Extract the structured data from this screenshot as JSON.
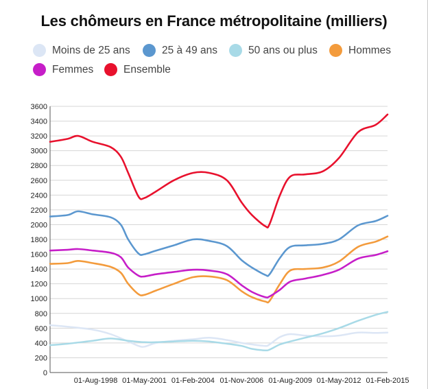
{
  "chart_data": {
    "type": "line",
    "title": "Les chômeurs en France métropolitaine (milliers)",
    "xlabel": "",
    "ylabel": "",
    "ylim": [
      0,
      3600
    ],
    "yticks": [
      0,
      200,
      400,
      600,
      800,
      1000,
      1200,
      1400,
      1600,
      1800,
      2000,
      2200,
      2400,
      2600,
      2800,
      3000,
      3200,
      3400,
      3600
    ],
    "xlim": [
      "1996-01",
      "2015-02"
    ],
    "xtick_labels": [
      "01-Aug-1998",
      "01-May-2001",
      "01-Feb-2004",
      "01-Nov-2006",
      "01-Aug-2009",
      "01-May-2012",
      "01-Feb-2015"
    ],
    "xtick_dates": [
      "1998-08",
      "2001-05",
      "2004-02",
      "2006-11",
      "2009-08",
      "2012-05",
      "2015-02"
    ],
    "grid": "horizontal",
    "legend_position": "top",
    "series": [
      {
        "name": "Moins de 25 ans",
        "color": "#dce6f5",
        "points": [
          [
            "1996-01",
            640
          ],
          [
            "1997-01",
            620
          ],
          [
            "1998-06",
            580
          ],
          [
            "1999-06",
            520
          ],
          [
            "2000-06",
            420
          ],
          [
            "2001-01",
            360
          ],
          [
            "2001-05",
            350
          ],
          [
            "2002-01",
            400
          ],
          [
            "2003-01",
            430
          ],
          [
            "2004-02",
            450
          ],
          [
            "2005-01",
            470
          ],
          [
            "2006-01",
            440
          ],
          [
            "2006-11",
            400
          ],
          [
            "2007-06",
            380
          ],
          [
            "2008-03",
            360
          ],
          [
            "2008-06",
            380
          ],
          [
            "2009-01",
            480
          ],
          [
            "2009-08",
            520
          ],
          [
            "2010-06",
            500
          ],
          [
            "2011-06",
            490
          ],
          [
            "2012-05",
            500
          ],
          [
            "2013-06",
            540
          ],
          [
            "2014-06",
            535
          ],
          [
            "2015-02",
            540
          ]
        ]
      },
      {
        "name": "25 à 49 ans",
        "color": "#5b97cf",
        "points": [
          [
            "1996-01",
            2110
          ],
          [
            "1997-01",
            2130
          ],
          [
            "1997-08",
            2180
          ],
          [
            "1998-06",
            2140
          ],
          [
            "1999-06",
            2100
          ],
          [
            "2000-01",
            2000
          ],
          [
            "2000-06",
            1800
          ],
          [
            "2001-01",
            1610
          ],
          [
            "2001-05",
            1600
          ],
          [
            "2002-01",
            1650
          ],
          [
            "2003-01",
            1720
          ],
          [
            "2004-02",
            1800
          ],
          [
            "2005-01",
            1780
          ],
          [
            "2006-01",
            1710
          ],
          [
            "2006-11",
            1520
          ],
          [
            "2007-06",
            1420
          ],
          [
            "2008-03",
            1320
          ],
          [
            "2008-06",
            1330
          ],
          [
            "2009-01",
            1550
          ],
          [
            "2009-08",
            1700
          ],
          [
            "2010-06",
            1720
          ],
          [
            "2011-06",
            1740
          ],
          [
            "2012-05",
            1800
          ],
          [
            "2013-06",
            1990
          ],
          [
            "2014-06",
            2050
          ],
          [
            "2015-02",
            2120
          ]
        ]
      },
      {
        "name": "50 ans ou plus",
        "color": "#a8dae7",
        "points": [
          [
            "1996-01",
            370
          ],
          [
            "1997-01",
            390
          ],
          [
            "1998-06",
            430
          ],
          [
            "1999-06",
            460
          ],
          [
            "2000-06",
            430
          ],
          [
            "2001-05",
            410
          ],
          [
            "2002-01",
            410
          ],
          [
            "2003-01",
            420
          ],
          [
            "2004-02",
            430
          ],
          [
            "2005-01",
            420
          ],
          [
            "2006-01",
            390
          ],
          [
            "2006-11",
            360
          ],
          [
            "2007-06",
            320
          ],
          [
            "2008-03",
            300
          ],
          [
            "2008-06",
            310
          ],
          [
            "2009-01",
            380
          ],
          [
            "2009-08",
            420
          ],
          [
            "2010-06",
            470
          ],
          [
            "2011-06",
            530
          ],
          [
            "2012-05",
            600
          ],
          [
            "2013-06",
            700
          ],
          [
            "2014-06",
            780
          ],
          [
            "2015-02",
            820
          ]
        ]
      },
      {
        "name": "Hommes",
        "color": "#f39b3c",
        "points": [
          [
            "1996-01",
            1470
          ],
          [
            "1997-01",
            1480
          ],
          [
            "1997-08",
            1510
          ],
          [
            "1998-06",
            1480
          ],
          [
            "1999-06",
            1430
          ],
          [
            "2000-01",
            1350
          ],
          [
            "2000-06",
            1200
          ],
          [
            "2001-01",
            1060
          ],
          [
            "2001-05",
            1050
          ],
          [
            "2002-01",
            1110
          ],
          [
            "2003-01",
            1200
          ],
          [
            "2004-02",
            1290
          ],
          [
            "2005-01",
            1300
          ],
          [
            "2006-01",
            1250
          ],
          [
            "2006-11",
            1100
          ],
          [
            "2007-06",
            1020
          ],
          [
            "2008-03",
            960
          ],
          [
            "2008-06",
            970
          ],
          [
            "2009-01",
            1200
          ],
          [
            "2009-08",
            1380
          ],
          [
            "2010-06",
            1400
          ],
          [
            "2011-06",
            1420
          ],
          [
            "2012-05",
            1500
          ],
          [
            "2013-06",
            1700
          ],
          [
            "2014-06",
            1770
          ],
          [
            "2015-02",
            1840
          ]
        ]
      },
      {
        "name": "Femmes",
        "color": "#c61ec8",
        "points": [
          [
            "1996-01",
            1650
          ],
          [
            "1997-01",
            1660
          ],
          [
            "1997-08",
            1670
          ],
          [
            "1998-06",
            1650
          ],
          [
            "1999-06",
            1620
          ],
          [
            "2000-01",
            1560
          ],
          [
            "2000-06",
            1420
          ],
          [
            "2001-01",
            1310
          ],
          [
            "2001-05",
            1300
          ],
          [
            "2002-01",
            1330
          ],
          [
            "2003-01",
            1360
          ],
          [
            "2004-02",
            1390
          ],
          [
            "2005-01",
            1380
          ],
          [
            "2006-01",
            1330
          ],
          [
            "2006-11",
            1180
          ],
          [
            "2007-06",
            1090
          ],
          [
            "2008-03",
            1020
          ],
          [
            "2008-06",
            1030
          ],
          [
            "2009-01",
            1120
          ],
          [
            "2009-08",
            1230
          ],
          [
            "2010-06",
            1270
          ],
          [
            "2011-06",
            1320
          ],
          [
            "2012-05",
            1390
          ],
          [
            "2013-06",
            1540
          ],
          [
            "2014-06",
            1590
          ],
          [
            "2015-02",
            1640
          ]
        ]
      },
      {
        "name": "Ensemble",
        "color": "#e8112d",
        "points": [
          [
            "1996-01",
            3120
          ],
          [
            "1997-01",
            3160
          ],
          [
            "1997-08",
            3200
          ],
          [
            "1998-06",
            3120
          ],
          [
            "1999-06",
            3050
          ],
          [
            "2000-01",
            2920
          ],
          [
            "2000-06",
            2700
          ],
          [
            "2001-01",
            2380
          ],
          [
            "2001-05",
            2360
          ],
          [
            "2002-01",
            2450
          ],
          [
            "2003-01",
            2600
          ],
          [
            "2004-02",
            2700
          ],
          [
            "2005-01",
            2700
          ],
          [
            "2006-01",
            2600
          ],
          [
            "2006-11",
            2300
          ],
          [
            "2007-06",
            2130
          ],
          [
            "2008-03",
            1980
          ],
          [
            "2008-06",
            2010
          ],
          [
            "2009-01",
            2400
          ],
          [
            "2009-08",
            2650
          ],
          [
            "2010-06",
            2680
          ],
          [
            "2011-06",
            2720
          ],
          [
            "2012-05",
            2900
          ],
          [
            "2013-06",
            3250
          ],
          [
            "2014-06",
            3350
          ],
          [
            "2015-02",
            3490
          ]
        ]
      }
    ]
  }
}
